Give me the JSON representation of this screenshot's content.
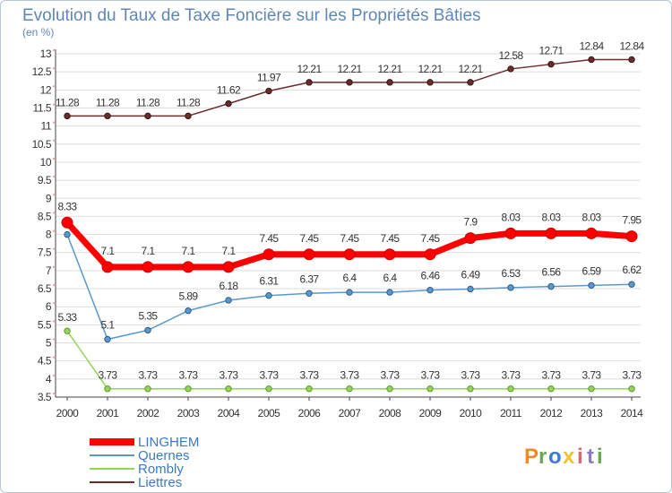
{
  "chart_data": {
    "type": "line",
    "title": "Evolution du Taux de Taxe Foncière sur les Propriétés Bâties",
    "subtitle": "(en %)",
    "xlabel": "",
    "ylabel": "",
    "categories": [
      "2000",
      "2001",
      "2002",
      "2003",
      "2004",
      "2005",
      "2006",
      "2007",
      "2008",
      "2009",
      "2010",
      "2011",
      "2012",
      "2013",
      "2014"
    ],
    "ylim": [
      3.5,
      13
    ],
    "yticks": [
      3.5,
      4,
      4.5,
      5,
      5.5,
      6,
      6.5,
      7,
      7.5,
      8,
      8.5,
      9,
      9.5,
      10,
      10.5,
      11,
      11.5,
      12,
      12.5,
      13
    ],
    "grid": "horizontal",
    "legend_position": "bottom-left",
    "series": [
      {
        "name": "Liettres",
        "color": "#6b2c2c",
        "values": [
          11.28,
          11.28,
          11.28,
          11.28,
          11.62,
          11.97,
          12.21,
          12.21,
          12.21,
          12.21,
          12.21,
          12.58,
          12.71,
          12.84,
          12.84
        ],
        "labels": [
          "11.28",
          "11.28",
          "11.28",
          "11.28",
          "11.62",
          "11.97",
          "12.21",
          "12.21",
          "12.21",
          "12.21",
          "12.21",
          "12.58",
          "12.71",
          "12.84",
          "12.84"
        ]
      },
      {
        "name": "Quernes",
        "color": "#5b98cc",
        "values": [
          8.0,
          5.1,
          5.35,
          5.89,
          6.18,
          6.31,
          6.37,
          6.4,
          6.4,
          6.46,
          6.49,
          6.53,
          6.56,
          6.59,
          6.62
        ],
        "labels": [
          "",
          "5.1",
          "5.35",
          "5.89",
          "6.18",
          "6.31",
          "6.37",
          "6.4",
          "6.4",
          "6.46",
          "6.49",
          "6.53",
          "6.56",
          "6.59",
          "6.62"
        ]
      },
      {
        "name": "Rombly",
        "color": "#93d459",
        "values": [
          5.33,
          3.73,
          3.73,
          3.73,
          3.73,
          3.73,
          3.73,
          3.73,
          3.73,
          3.73,
          3.73,
          3.73,
          3.73,
          3.73,
          3.73
        ],
        "labels": [
          "5.33",
          "3.73",
          "3.73",
          "3.73",
          "3.73",
          "3.73",
          "3.73",
          "3.73",
          "3.73",
          "3.73",
          "3.73",
          "3.73",
          "3.73",
          "3.73",
          "3.73"
        ]
      },
      {
        "name": "LINGHEM",
        "color": "#ff0000",
        "values": [
          8.33,
          7.1,
          7.1,
          7.1,
          7.1,
          7.45,
          7.45,
          7.45,
          7.45,
          7.45,
          7.9,
          8.03,
          8.03,
          8.03,
          7.95
        ],
        "labels": [
          "8.33",
          "7.1",
          "7.1",
          "7.1",
          "7.1",
          "7.45",
          "7.45",
          "7.45",
          "7.45",
          "7.45",
          "7.9",
          "8.03",
          "8.03",
          "8.03",
          "7.95"
        ]
      }
    ],
    "legend": [
      "LINGHEM",
      "Quernes",
      "Rombly",
      "Liettres"
    ]
  },
  "brand": {
    "letters": [
      "P",
      "r",
      "o",
      "x",
      "i",
      "t",
      "i"
    ],
    "colors": [
      "#f08a24",
      "#6aa84f",
      "#3c78d8",
      "#f1c232",
      "#e06666",
      "#8e7cc3",
      "#6aa84f"
    ]
  }
}
